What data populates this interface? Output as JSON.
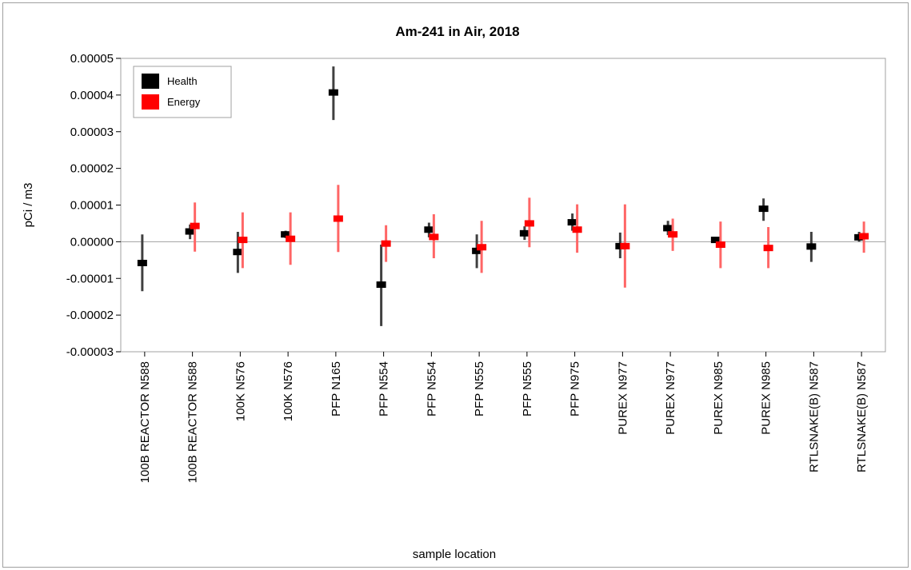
{
  "chart_data": {
    "type": "scatter",
    "title": "Am-241 in Air, 2018",
    "xlabel": "sample location",
    "ylabel": "pCi / m3",
    "ylim": [
      -3e-05,
      5e-05
    ],
    "yticks": [
      "0.00005",
      "0.00004",
      "0.00003",
      "0.00002",
      "0.00001",
      "0.00000",
      "-0.00001",
      "-0.00002",
      "-0.00003"
    ],
    "ytick_values": [
      5e-05,
      4e-05,
      3e-05,
      2e-05,
      1e-05,
      0,
      -1e-05,
      -2e-05,
      -3e-05
    ],
    "categories": [
      "100B REACTOR N588",
      "100B REACTOR N588",
      "100K N576",
      "100K N576",
      "PFP N165",
      "PFP N554",
      "PFP N554",
      "PFP N555",
      "PFP N555",
      "PFP N975",
      "PUREX N977",
      "PUREX N977",
      "PUREX N985",
      "PUREX N985",
      "RTLSNAKE(B) N587",
      "RTLSNAKE(B) N587"
    ],
    "grid": false,
    "zero_line": true,
    "legend_position": "top-left",
    "colors": {
      "Health": "#000000",
      "Energy": "#ff0000"
    },
    "series": [
      {
        "name": "Health",
        "points": [
          {
            "cat": 0,
            "y": -5.8e-06,
            "lo": -1.35e-05,
            "hi": 2e-06
          },
          {
            "cat": 1,
            "y": 2.8e-06,
            "lo": 7e-07,
            "hi": 4.7e-06
          },
          {
            "cat": 2,
            "y": -2.8e-06,
            "lo": -8.5e-06,
            "hi": 2.7e-06
          },
          {
            "cat": 3,
            "y": 2e-06,
            "lo": 1e-06,
            "hi": 3e-06
          },
          {
            "cat": 4,
            "y": 4.07e-05,
            "lo": 3.32e-05,
            "hi": 4.78e-05
          },
          {
            "cat": 5,
            "y": -1.17e-05,
            "lo": -2.3e-05,
            "hi": -8e-07
          },
          {
            "cat": 6,
            "y": 3.3e-06,
            "lo": 1.2e-06,
            "hi": 5.2e-06
          },
          {
            "cat": 7,
            "y": -2.5e-06,
            "lo": -7.2e-06,
            "hi": 2e-06
          },
          {
            "cat": 8,
            "y": 2.3e-06,
            "lo": 5e-07,
            "hi": 4.2e-06
          },
          {
            "cat": 9,
            "y": 5.3e-06,
            "lo": 3e-06,
            "hi": 7.7e-06
          },
          {
            "cat": 10,
            "y": -1.2e-06,
            "lo": -4.5e-06,
            "hi": 2.5e-06
          },
          {
            "cat": 11,
            "y": 3.7e-06,
            "lo": 1.8e-06,
            "hi": 5.7e-06
          },
          {
            "cat": 12,
            "y": 5e-07,
            "lo": 0.0,
            "hi": 1.2e-06
          },
          {
            "cat": 13,
            "y": 9e-06,
            "lo": 5.7e-06,
            "hi": 1.18e-05
          },
          {
            "cat": 14,
            "y": -1.3e-06,
            "lo": -5.5e-06,
            "hi": 2.7e-06
          },
          {
            "cat": 15,
            "y": 1.2e-06,
            "lo": 0.0,
            "hi": 2.7e-06
          }
        ]
      },
      {
        "name": "Energy",
        "points": [
          {
            "cat": 1,
            "y": 4.3e-06,
            "lo": -2.7e-06,
            "hi": 1.07e-05
          },
          {
            "cat": 2,
            "y": 5e-07,
            "lo": -7.2e-06,
            "hi": 8e-06
          },
          {
            "cat": 3,
            "y": 8e-07,
            "lo": -6.3e-06,
            "hi": 8e-06
          },
          {
            "cat": 4,
            "y": 6.3e-06,
            "lo": -2.8e-06,
            "hi": 1.55e-05
          },
          {
            "cat": 5,
            "y": -5e-07,
            "lo": -5.5e-06,
            "hi": 4.5e-06
          },
          {
            "cat": 6,
            "y": 1.3e-06,
            "lo": -4.5e-06,
            "hi": 7.5e-06
          },
          {
            "cat": 7,
            "y": -1.5e-06,
            "lo": -8.5e-06,
            "hi": 5.7e-06
          },
          {
            "cat": 8,
            "y": 5e-06,
            "lo": -1.5e-06,
            "hi": 1.2e-05
          },
          {
            "cat": 9,
            "y": 3.3e-06,
            "lo": -3e-06,
            "hi": 1.02e-05
          },
          {
            "cat": 10,
            "y": -1.2e-06,
            "lo": -1.25e-05,
            "hi": 1.02e-05
          },
          {
            "cat": 11,
            "y": 2e-06,
            "lo": -2.5e-06,
            "hi": 6.3e-06
          },
          {
            "cat": 12,
            "y": -8e-07,
            "lo": -7.2e-06,
            "hi": 5.5e-06
          },
          {
            "cat": 13,
            "y": -1.7e-06,
            "lo": -7.2e-06,
            "hi": 4e-06
          },
          {
            "cat": 15,
            "y": 1.5e-06,
            "lo": -3e-06,
            "hi": 5.5e-06
          }
        ]
      }
    ]
  }
}
